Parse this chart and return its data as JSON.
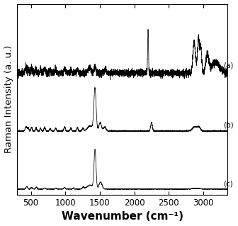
{
  "xlim": [
    300,
    3350
  ],
  "xticks": [
    500,
    1000,
    1500,
    2000,
    2500,
    3000
  ],
  "xlabel": "Wavenumber (cm⁻¹)",
  "ylabel": "Raman Intensity (a. u.)",
  "labels": [
    "(a)",
    "(b)",
    "(c)"
  ],
  "offsets": [
    1.6,
    0.8,
    0.0
  ],
  "line_color": "#000000",
  "background_color": "#ffffff",
  "xlabel_fontsize": 11,
  "ylabel_fontsize": 9.5
}
